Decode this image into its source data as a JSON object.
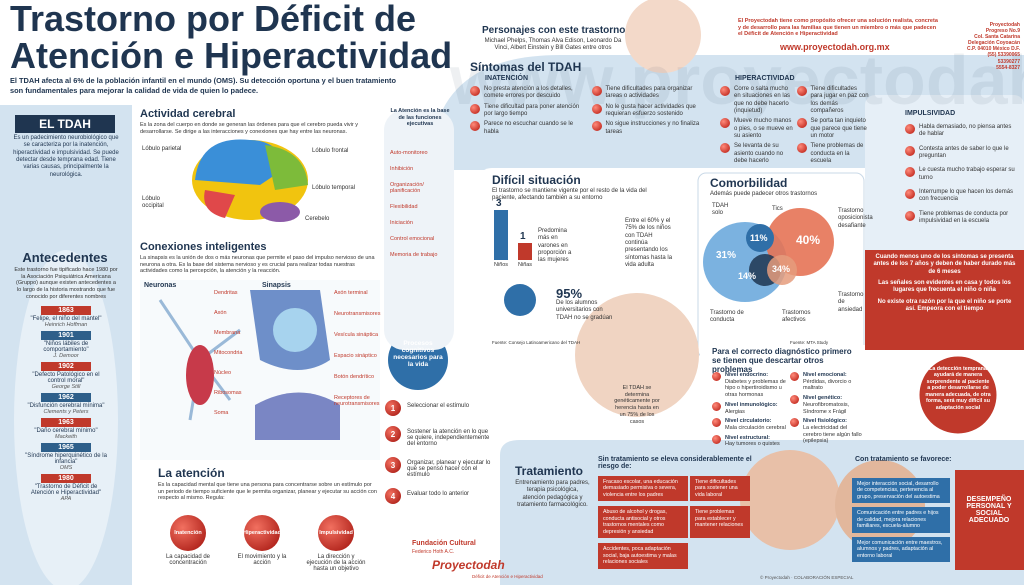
{
  "header": {
    "title_line1": "Trastorno por Déficit de",
    "title_line2": "Atención e Hiperactividad",
    "intro": "El TDAH afecta al 6% de la población infantil en el mundo (OMS). Su detección oportuna y el buen tratamiento son fundamentales para mejorar la calidad de vida de quien lo padece."
  },
  "el_tdah": {
    "title": "EL TDAH",
    "text": "Es un padecimiento neurobiológico que se caracteriza por la inatención, hiperactividad e impulsividad. Se puede detectar desde temprana edad. Tiene varias causas, principalmente la neurológica."
  },
  "antecedentes": {
    "title": "Antecedentes",
    "text": "Este trastorno fue tipificado hace 1980 por la Asociación Psiquiátrica Americana (Gruppo) aunque existen antecedentes a lo largo de la historia mostrando que fue conocido por diferentes nombres",
    "timeline": [
      {
        "year": "1863",
        "label": "\"Felipe, el niño del mantel\"",
        "author": "Heinrich Hoffman"
      },
      {
        "year": "1901",
        "label": "\"Niños lábiles de comportamiento\"",
        "author": "J. Demoor"
      },
      {
        "year": "1902",
        "label": "\"Defecto Patológico en el control moral\"",
        "author": "George Still"
      },
      {
        "year": "1962",
        "label": "\"Disfunción cerebral mínima\"",
        "author": "Clements y Peters"
      },
      {
        "year": "1963",
        "label": "\"Daño cerebral mínimo\"",
        "author": "Mackeith"
      },
      {
        "year": "1965",
        "label": "\"Síndrome hiperquinético de la infancia\"",
        "author": "OMS"
      },
      {
        "year": "1980",
        "label": "\"Trastorno de Déficit de Atención e Hiperactividad\"",
        "author": "APA"
      }
    ]
  },
  "actividad_cerebral": {
    "title": "Actividad cerebral",
    "text": "Es la zona del cuerpo en donde se generan las órdenes para que el cerebro pueda vivir y desarrollarse. Se dirige a las interacciones y conexiones que hay entre las neuronas.",
    "labels": {
      "parietal": "Lóbulo parietal",
      "frontal": "Lóbulo frontal",
      "temporal": "Lóbulo temporal",
      "occipital": "Lóbulo occipital",
      "cerebelo": "Cerebelo"
    }
  },
  "conexiones": {
    "title": "Conexiones inteligentes",
    "text": "La sinapsis es la unión de dos o más neuronas que permite el paso del impulso nervioso de una neurona a otra. Es la base del sistema nervioso y es crucial para realizar todas nuestras actividades como la percepción, la atención y la reacción.",
    "neuronas_title": "Neuronas",
    "neuronas_labels": [
      "Dendritas",
      "Axón",
      "Membrana",
      "Mitocondria",
      "Núcleo",
      "Ribosomas",
      "Soma"
    ],
    "sinapsis_title": "Sinapsis",
    "sinapsis_labels": [
      "Axón terminal",
      "Neurotransmisores",
      "Vesícula sináptica",
      "Espacio sináptico",
      "Botón dendrítico",
      "Receptores de neurotransmisores"
    ]
  },
  "la_atencion": {
    "title": "La atención",
    "text": "Es la capacidad mental que tiene una persona para concentrarse sobre un estímulo por un periodo de tiempo suficiente que le permita organizar, planear y ejecutar su acción con respecto al mismo. Regula:",
    "regula": [
      {
        "name": "Inatención",
        "caption": "La capacidad de concentración"
      },
      {
        "name": "Hiperactividad",
        "caption": "El movimiento y la acción"
      },
      {
        "name": "Impulsividad",
        "caption": "La dirección y ejecución de la acción hasta un objetivo"
      }
    ]
  },
  "funciones": {
    "title": "La Atención es la base de las funciones ejecutivas",
    "items": [
      "Auto-monitoreo",
      "Inhibición",
      "Organización/ planificación",
      "Flexibilidad",
      "Iniciación",
      "Control emocional",
      "Memoria de trabajo"
    ]
  },
  "procesos": {
    "title": "Procesos cognitivos necesarios para la vida",
    "steps": [
      {
        "n": "1",
        "text": "Seleccionar el estímulo"
      },
      {
        "n": "2",
        "text": "Sostener la atención en lo que se quiere, independientemente del entorno"
      },
      {
        "n": "3",
        "text": "Organizar, planear y ejecutar lo que se pensó hacer con el estímulo"
      },
      {
        "n": "4",
        "text": "Evaluar todo lo anterior"
      }
    ]
  },
  "personajes": {
    "title": "Personajes con este trastorno",
    "text": "Michael Phelps, Thomas Alva Edison, Leonardo Da Vinci, Albert Einstein y Bill Gates entre otros"
  },
  "sintomas": {
    "title": "Síntomas del TDAH",
    "inatencion": {
      "title": "INATENCIÓN",
      "items": [
        "No presta atención a los detalles, comete errores por descuido",
        "Tiene dificultad para poner atención por largo tiempo",
        "Parece no escuchar cuando se le habla",
        "Tiene dificultades para organizar tareas o actividades",
        "No le gusta hacer actividades que requieran esfuerzo sostenido",
        "No sigue instrucciones y no finaliza tareas"
      ]
    },
    "hiperactividad": {
      "title": "HIPERACTIVIDAD",
      "items": [
        "Corre o salta mucho en situaciones en las que no debe hacerlo (inquietud)",
        "Mueve mucho manos o pies, o se mueve en su asiento",
        "Se levanta de su asiento cuando no debe hacerlo",
        "Tiene dificultades para jugar en paz con los demás compañeros",
        "Se porta tan inquieto que parece que tiene un motor",
        "Tiene problemas de conducta en la escuela"
      ]
    },
    "impulsividad": {
      "title": "IMPULSIVIDAD",
      "items": [
        "Habla demasiado, no piensa antes de hablar",
        "Contesta antes de saber lo que le preguntan",
        "Le cuesta mucho trabajo esperar su turno",
        "Interrumpe lo que hacen los demás con frecuencia",
        "Tiene problemas de conducta por impulsividad en la escuela"
      ]
    }
  },
  "alertas": [
    "Cuando menos uno de los síntomas se presenta antes de los 7 años y deben de haber durado más de 6 meses",
    "Las señales son evidentes en casa y todos los lugares que frecuenta el niño o niña",
    "No existe otra razón por la que el niño se porte así. Empeora con el tiempo"
  ],
  "deteccion": "La detección temprana ayudará de manera sorprendente al paciente a poder desarrollarse de manera adecuada, de otra forma, será muy difícil su adaptación social",
  "dificil": {
    "title": "Difícil situación",
    "text": "El trastorno se mantiene vigente por el resto de la vida del paciente, afectando también a su entorno",
    "bars": [
      {
        "value": 3,
        "label": "Niños"
      },
      {
        "value": 1,
        "label": "Niñas"
      }
    ],
    "bars_text": "Predomina más en varones en proporción a las mujeres",
    "adultos": "Entre el 60% y el 75% de los niños con TDAH continúa presentando los síntomas hasta la vida adulta",
    "pct": "95%",
    "pct_text": "De los alumnos universitarios con TDAH no se gradúan",
    "fuente": "Fuente: Consejo Latinoamericano del TDAH"
  },
  "comorbilidad": {
    "title": "Comorbilidad",
    "subtitle": "Además puede padecer otros trastornos",
    "labels": {
      "solo": "TDAH solo",
      "tics": "Tics",
      "oposicionista": "Trastorno oposicionista desafiante",
      "ansiedad": "Trastorno de ansiedad",
      "conducta": "Trastorno de conducta",
      "afectivos": "Trastornos afectivos"
    },
    "pcts": {
      "solo": "31%",
      "tics": "11%",
      "oposicionista": "40%",
      "conducta": "14%",
      "ansiedad": "34%"
    },
    "fuente": "Fuente: MTA Study"
  },
  "genetica": "El TDAH se determina genéticamente por herencia hasta en un 75% de los casos",
  "diagnostico": {
    "title": "Para el correcto diagnóstico primero se tienen que descartar otros problemas",
    "left": [
      {
        "nivel": "Nivel endocrino:",
        "desc": "Diabetes y problemas de hipo o hipertiroidismo u otras hormonas"
      },
      {
        "nivel": "Nivel inmunológico:",
        "desc": "Alergias"
      },
      {
        "nivel": "Nivel circulatorio:",
        "desc": "Mala circulación cerebral"
      },
      {
        "nivel": "Nivel estructural:",
        "desc": "Hay tumores o quistes"
      }
    ],
    "right": [
      {
        "nivel": "Nivel emocional:",
        "desc": "Pérdidas, divorcio o maltrato"
      },
      {
        "nivel": "Nivel genético:",
        "desc": "Neurofibromatosis, Síndrome x Frágil"
      },
      {
        "nivel": "Nivel fisiológico:",
        "desc": "La electricidad del cerebro tiene algún fallo (epilepsia)"
      }
    ]
  },
  "tratamiento": {
    "title": "Tratamiento",
    "text": "Entrenamiento para padres, terapia psicológica, atención pedagógica y tratamiento farmacológico."
  },
  "sin_tratamiento": {
    "title": "Sin tratamiento se eleva considerablemente el riesgo de:",
    "items": [
      "Fracaso escolar, una educación demasiado permisiva o severa, violencia entre los padres",
      "Tiene dificultades para sostener una vida laboral",
      "Abuso de alcohol y drogas, conducta antisocial y otros trastornos mentales como depresión y ansiedad",
      "Tiene problemas para establecer y mantener relaciones",
      "Accidentes, poca adaptación social, baja autoestima y malas relaciones sociales"
    ]
  },
  "con_tratamiento": {
    "title": "Con tratamiento se favorece:",
    "items": [
      "Mejor interacción social, desarrollo de competencias, pertenencia al grupo, preservación del autoestima",
      "Comunicación entre padres e hijos de calidad, mejora relaciones familiares, escuela-alumno",
      "Mejor comunicación entre maestros, alumnos y padres, adaptación al entorno laboral"
    ],
    "resultado": "DESEMPEÑO PERSONAL Y SOCIAL ADECUADO"
  },
  "proyecto": {
    "text": "El Proyectodah tiene como propósito ofrecer una solución realista, concreta y de desarrollo para las familias que tienen un miembro o más que padecen el Déficit de Atención e Hiperactividad",
    "website": "www.proyectodah.org.mx",
    "address": [
      "Proyectodah",
      "Progreso No.9",
      "Col. Santa Catarina",
      "Delegación Coyoacán",
      "C.P. 04010 México D.F.",
      "(55) 53390065",
      "53390277",
      "5554-8327"
    ]
  },
  "footer": {
    "fundacion": "Fundación Cultural",
    "fundacion_sub": "Federico Hoth A.C.",
    "logo": "Proyectodah",
    "logo_sub": "Déficit de Atención e Hiperactividad",
    "credits": "© Proyectodah · COLABORACIÓN ESPECIAL"
  }
}
